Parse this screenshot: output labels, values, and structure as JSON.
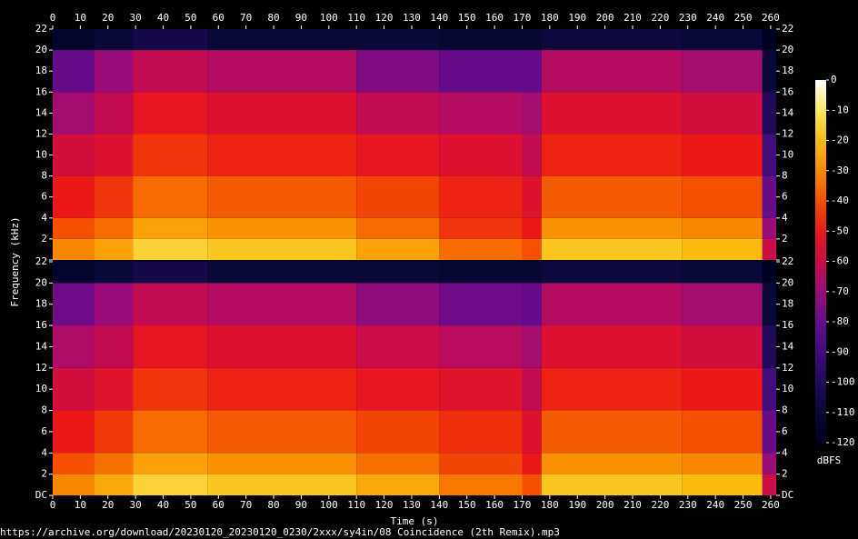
{
  "chart_data": {
    "type": "heatmap",
    "x_label": "Time (s)",
    "y_label": "Frequency (kHz)",
    "caption": "https://archive.org/download/20230120_20230120_0230/2xxx/sy4in/08 Coincidence (2th Remix).mp3",
    "xlim": [
      0,
      262
    ],
    "xticks": [
      0,
      10,
      20,
      30,
      40,
      50,
      60,
      70,
      80,
      90,
      100,
      110,
      120,
      130,
      140,
      150,
      160,
      170,
      180,
      190,
      200,
      210,
      220,
      230,
      240,
      250,
      260
    ],
    "ylim": [
      0,
      22
    ],
    "yticks": [
      {
        "value": 0,
        "label": "DC"
      },
      2,
      4,
      6,
      8,
      10,
      12,
      14,
      16,
      18,
      20,
      22
    ],
    "time_edges": [
      0,
      15,
      29,
      56,
      110,
      140,
      170,
      177,
      228,
      257,
      262
    ],
    "freq_edges": [
      0,
      2,
      4,
      8,
      12,
      16,
      20,
      22
    ],
    "channels": [
      {
        "values": [
          [
            -30,
            -25,
            -15,
            -18,
            -25,
            -35,
            -40,
            -18,
            -20,
            -60
          ],
          [
            -40,
            -35,
            -25,
            -28,
            -35,
            -45,
            -50,
            -28,
            -30,
            -70
          ],
          [
            -50,
            -45,
            -35,
            -38,
            -42,
            -48,
            -55,
            -38,
            -40,
            -80
          ],
          [
            -58,
            -55,
            -45,
            -48,
            -52,
            -55,
            -62,
            -48,
            -50,
            -90
          ],
          [
            -68,
            -62,
            -52,
            -55,
            -62,
            -65,
            -68,
            -55,
            -58,
            -100
          ],
          [
            -80,
            -70,
            -62,
            -65,
            -75,
            -80,
            -80,
            -65,
            -68,
            -110
          ],
          [
            -115,
            -110,
            -105,
            -110,
            -110,
            -112,
            -112,
            -108,
            -110,
            -120
          ]
        ]
      },
      {
        "values": [
          [
            -30,
            -24,
            -15,
            -18,
            -24,
            -33,
            -40,
            -18,
            -20,
            -60
          ],
          [
            -40,
            -34,
            -25,
            -28,
            -34,
            -42,
            -50,
            -28,
            -30,
            -70
          ],
          [
            -50,
            -44,
            -35,
            -38,
            -42,
            -46,
            -55,
            -38,
            -40,
            -80
          ],
          [
            -58,
            -54,
            -45,
            -48,
            -52,
            -54,
            -62,
            -48,
            -50,
            -90
          ],
          [
            -66,
            -62,
            -52,
            -55,
            -60,
            -64,
            -68,
            -55,
            -58,
            -100
          ],
          [
            -78,
            -70,
            -62,
            -65,
            -72,
            -78,
            -80,
            -65,
            -68,
            -110
          ],
          [
            -115,
            -110,
            -105,
            -110,
            -110,
            -112,
            -112,
            -108,
            -110,
            -120
          ]
        ]
      }
    ],
    "colorbar": {
      "label": "dBFS",
      "lim": [
        -120,
        0
      ],
      "ticks": [
        0,
        -10,
        -20,
        -30,
        -40,
        -50,
        -60,
        -70,
        -80,
        -90,
        -100,
        -110,
        -120
      ],
      "colors": [
        "#000020",
        "#0a0838",
        "#200a5c",
        "#420c7c",
        "#660c8a",
        "#9a0c7a",
        "#cc0c48",
        "#ec1818",
        "#f45000",
        "#f88800",
        "#fbbc10",
        "#fde860",
        "#ffffff"
      ]
    }
  }
}
